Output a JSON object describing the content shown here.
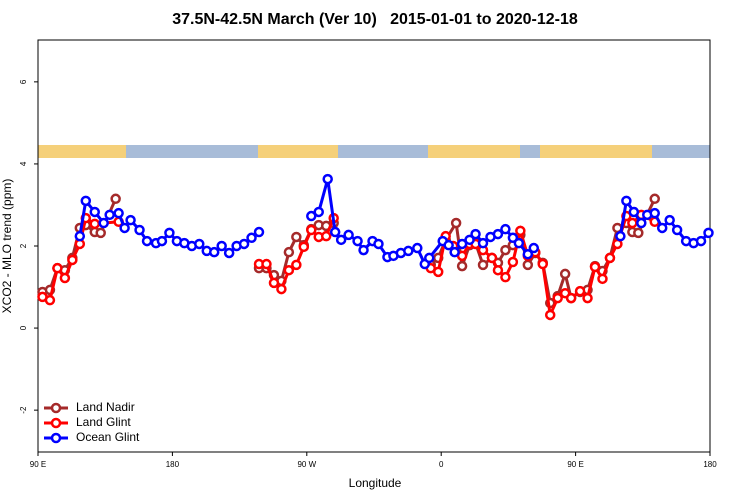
{
  "chart_data": {
    "type": "line",
    "title": "37.5N-42.5N March (Ver 10)   2015-01-01 to 2020-12-18",
    "x_label": "Longitude",
    "y_label": "XCO2 - MLO trend (ppm)",
    "xlim": [
      90,
      540
    ],
    "ylim": [
      -3.02,
      7.02
    ],
    "xticks": [
      {
        "value": 90,
        "label": "90 E"
      },
      180,
      {
        "value": 270,
        "label": "90 W"
      },
      {
        "value": 360,
        "label": "0"
      },
      {
        "value": 450,
        "label": "90 E"
      },
      {
        "value": 540,
        "label": "180"
      }
    ],
    "yticks": [
      -2,
      0,
      2,
      4,
      6
    ],
    "legend": "bottom-left",
    "series": [
      {
        "name": "Land Nadir",
        "color": "#a52a2a",
        "x": [
          93,
          98,
          103,
          108,
          113,
          118,
          122,
          128,
          132,
          142,
          190,
          238,
          243,
          248,
          253,
          258,
          263,
          268,
          273,
          278,
          283,
          288,
          320,
          353,
          358,
          363,
          370,
          374,
          379,
          383,
          388,
          394,
          398,
          403,
          408,
          413,
          418,
          423,
          428,
          433,
          438,
          443,
          447,
          453,
          458,
          463,
          468,
          473,
          478,
          484,
          488,
          492,
          503
        ],
        "values": [
          0.88,
          0.93,
          1.46,
          1.41,
          1.71,
          2.44,
          2.51,
          2.34,
          2.32,
          3.15,
          null,
          1.46,
          1.46,
          1.29,
          1.15,
          1.85,
          2.22,
          2.02,
          2.41,
          2.51,
          2.49,
          2.56,
          null,
          1.54,
          1.71,
          2.15,
          2.56,
          1.51,
          2.02,
          2.07,
          1.54,
          1.71,
          1.59,
          1.9,
          2.02,
          2.27,
          1.54,
          1.83,
          1.59,
          0.61,
          0.78,
          1.32,
          0.73,
          0.88,
          0.93,
          1.51,
          1.39,
          1.71,
          2.44,
          2.56,
          2.34,
          2.32,
          3.15
        ]
      },
      {
        "name": "Land Glint",
        "color": "#ff0000",
        "x": [
          93,
          98,
          103,
          108,
          113,
          118,
          122,
          128,
          144,
          190,
          238,
          243,
          248,
          253,
          258,
          263,
          268,
          273,
          278,
          283,
          288,
          320,
          353,
          358,
          363,
          368,
          374,
          379,
          383,
          388,
          394,
          398,
          403,
          408,
          413,
          418,
          423,
          428,
          433,
          438,
          443,
          447,
          453,
          458,
          463,
          468,
          473,
          478,
          484,
          488,
          494,
          503
        ],
        "values": [
          0.76,
          0.68,
          1.46,
          1.22,
          1.66,
          2.05,
          2.68,
          2.54,
          2.59,
          null,
          1.56,
          1.56,
          1.1,
          0.95,
          1.41,
          1.54,
          1.98,
          2.39,
          2.22,
          2.24,
          2.68,
          null,
          1.46,
          1.37,
          2.24,
          2.0,
          1.76,
          2.05,
          2.05,
          1.9,
          1.71,
          1.41,
          1.24,
          1.61,
          2.37,
          1.76,
          1.85,
          1.56,
          0.32,
          0.73,
          0.85,
          0.73,
          0.9,
          0.73,
          1.49,
          1.2,
          1.71,
          2.05,
          2.73,
          2.56,
          2.76,
          2.59
        ]
      },
      {
        "name": "Ocean Glint",
        "color": "#0000ff",
        "x": [
          118,
          122,
          128,
          134,
          138,
          144,
          148,
          152,
          158,
          163,
          169,
          173,
          178,
          183,
          188,
          193,
          198,
          203,
          208,
          213,
          218,
          223,
          228,
          233,
          238,
          255,
          273,
          278,
          284,
          289,
          293,
          298,
          304,
          308,
          314,
          318,
          324,
          328,
          333,
          338,
          344,
          349,
          352,
          361,
          365,
          369,
          374,
          379,
          383,
          388,
          393,
          398,
          403,
          408,
          412,
          418,
          422,
          450,
          480,
          484,
          489,
          494,
          498,
          503,
          508,
          513,
          518,
          524,
          529,
          534,
          539
        ],
        "values": [
          2.24,
          3.1,
          2.83,
          2.56,
          2.76,
          2.8,
          2.44,
          2.63,
          2.39,
          2.12,
          2.07,
          2.12,
          2.32,
          2.12,
          2.07,
          2.0,
          2.05,
          1.88,
          1.85,
          2.0,
          1.83,
          2.0,
          2.05,
          2.2,
          2.34,
          null,
          2.73,
          2.83,
          3.63,
          2.34,
          2.15,
          2.27,
          2.12,
          1.9,
          2.12,
          2.05,
          1.73,
          1.76,
          1.83,
          1.88,
          1.95,
          1.56,
          1.71,
          2.12,
          2.02,
          1.85,
          2.05,
          2.15,
          2.29,
          2.07,
          2.22,
          2.29,
          2.41,
          2.2,
          2.07,
          1.8,
          1.95,
          null,
          2.24,
          3.1,
          2.83,
          2.56,
          2.76,
          2.8,
          2.44,
          2.63,
          2.39,
          2.12,
          2.07,
          2.12,
          2.32
        ]
      }
    ]
  }
}
